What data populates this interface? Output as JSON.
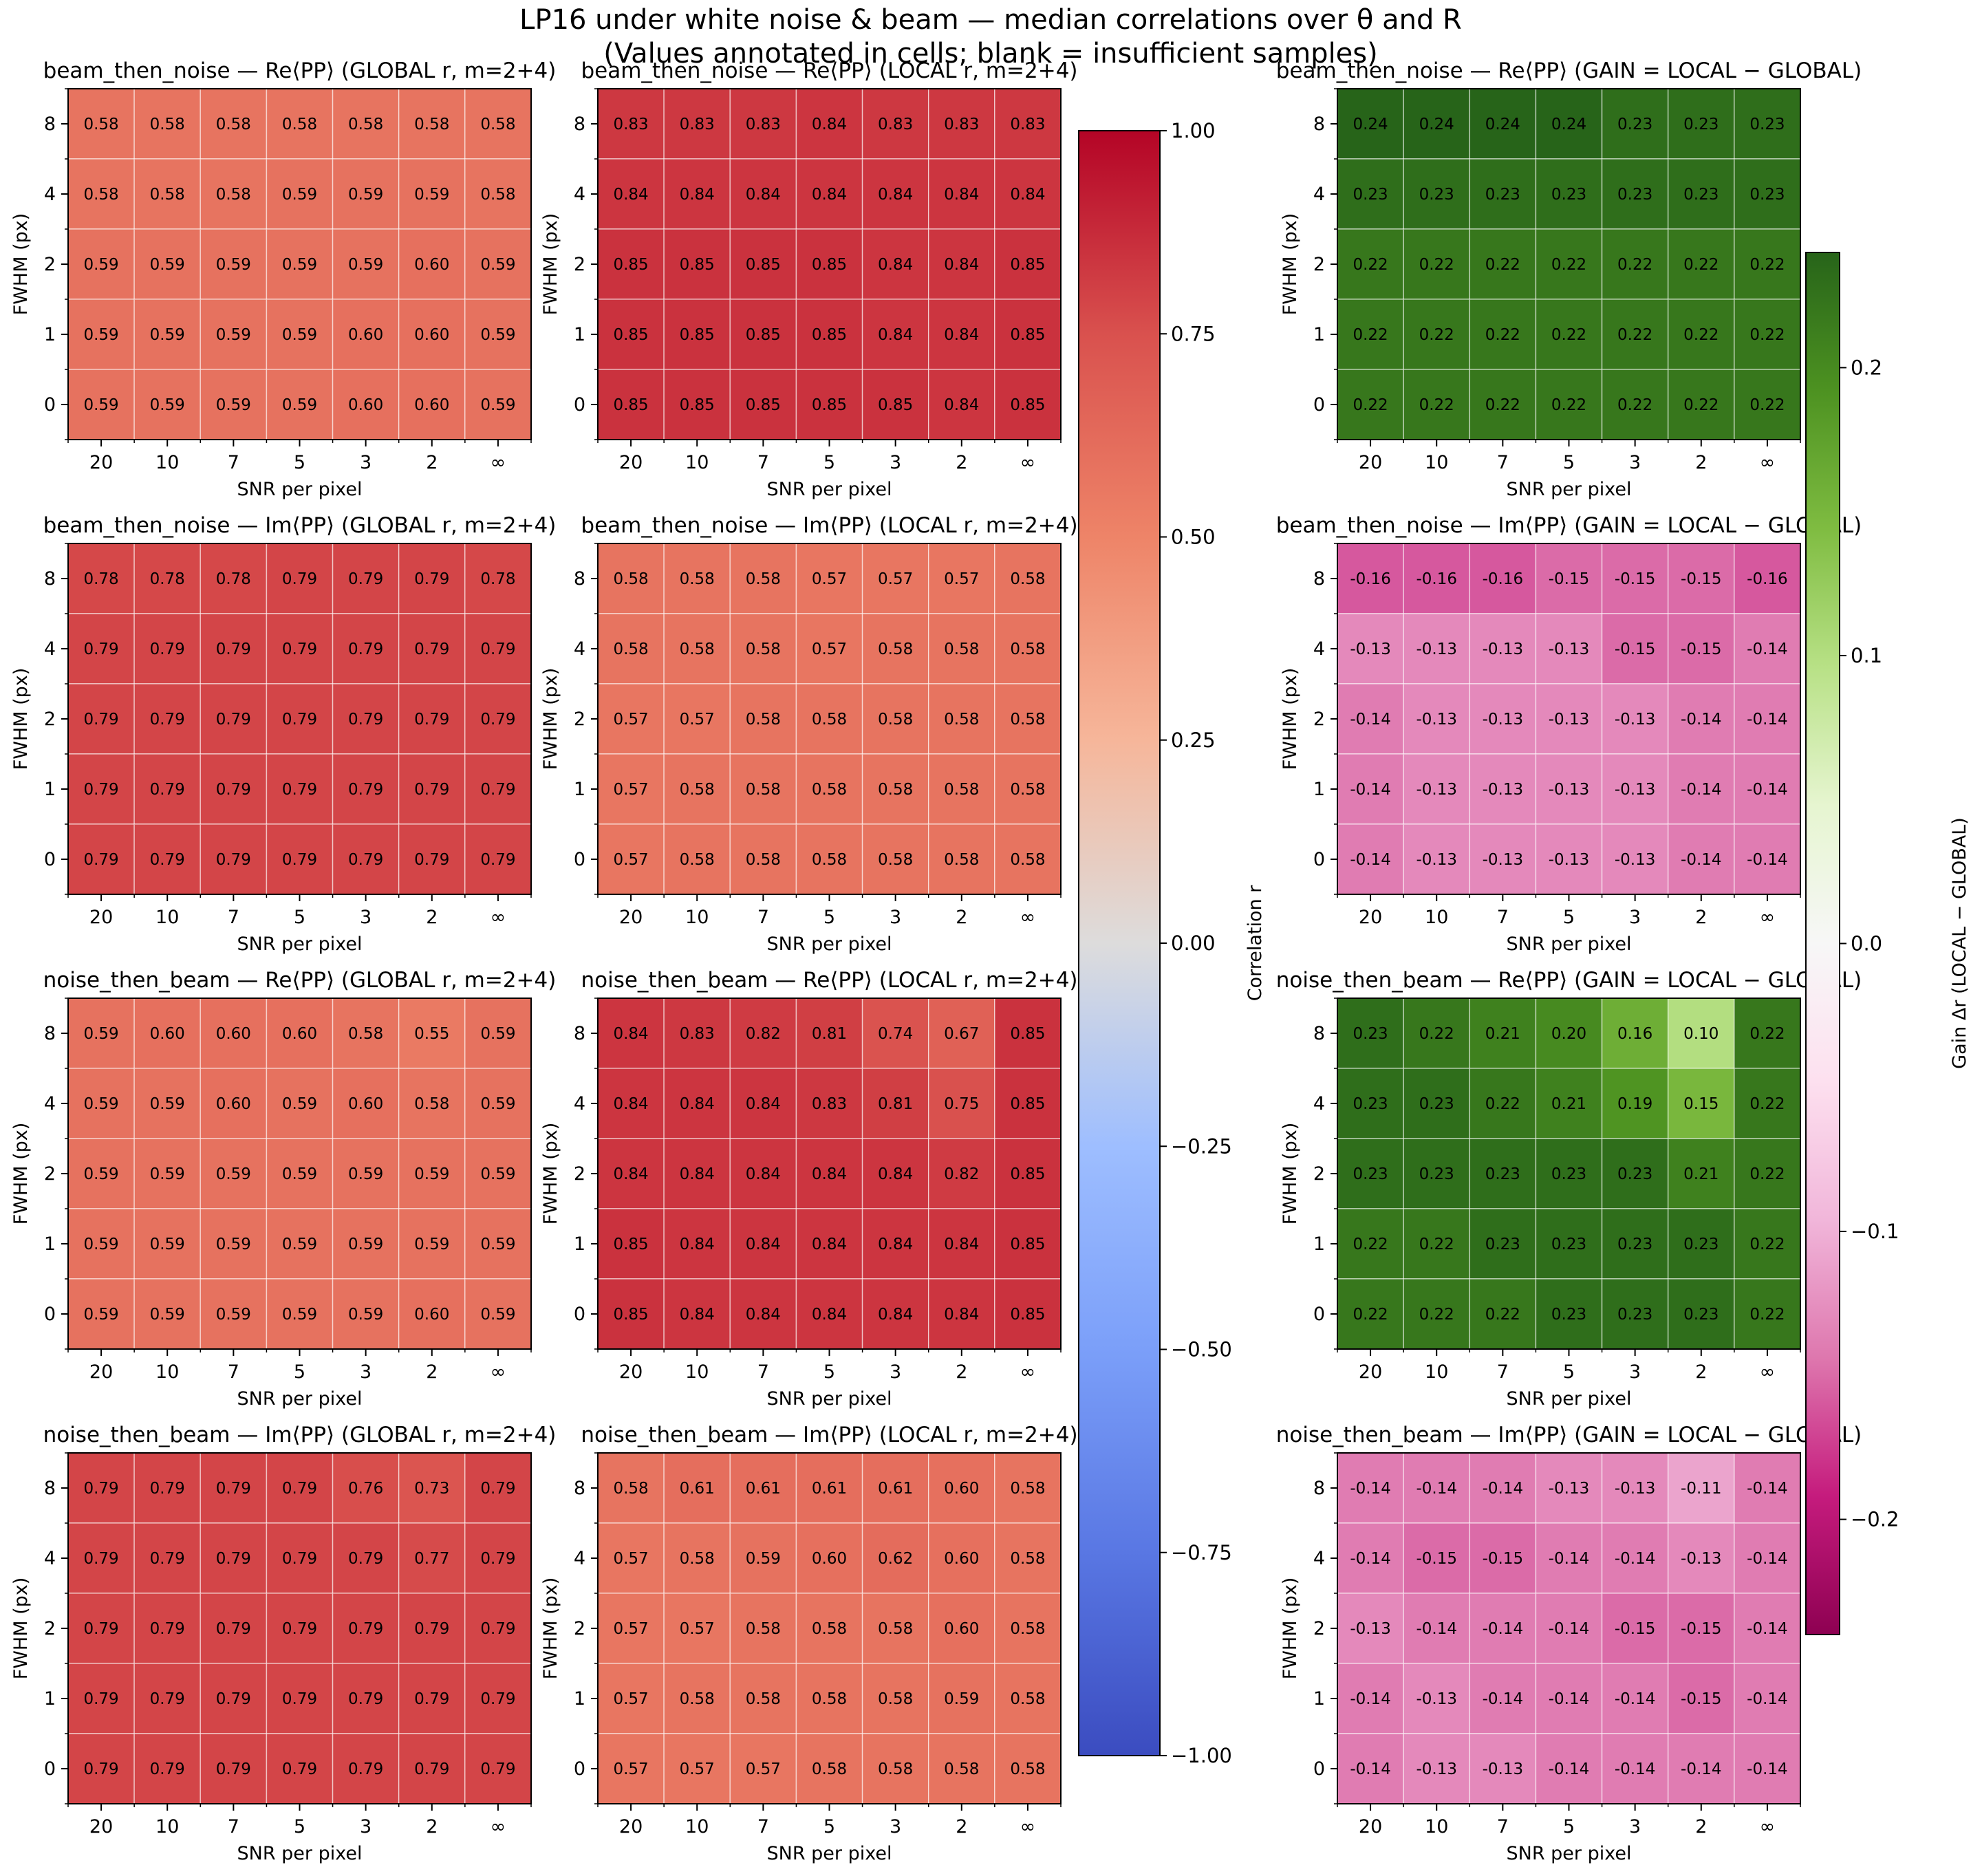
{
  "figure": {
    "title_line1": "LP16 under white noise & beam — median correlations over θ and R",
    "title_line2": "(Values annotated in cells; blank = insufficient samples)"
  },
  "colorbars": {
    "corr": {
      "label": "Correlation r",
      "ticks": [
        "1.00",
        "0.75",
        "0.50",
        "0.25",
        "0.00",
        "−0.25",
        "−0.50",
        "−0.75",
        "−1.00"
      ],
      "colormap": "coolwarm",
      "vmin": -1,
      "vmax": 1
    },
    "gain": {
      "label": "Gain Δr (LOCAL − GLOBAL)",
      "ticks": [
        "0.2",
        "0.1",
        "0.0",
        "−0.1",
        "−0.2"
      ],
      "colormap": "PiYG",
      "vmin": -0.24,
      "vmax": 0.24
    }
  },
  "chart_data": {
    "type": "heatmap",
    "x_categories": [
      "20",
      "10",
      "7",
      "5",
      "3",
      "2",
      "∞"
    ],
    "y_categories": [
      "8",
      "4",
      "2",
      "1",
      "0"
    ],
    "xlabel": "SNR per pixel",
    "ylabel": "FWHM (px)",
    "grid": true,
    "panels": [
      {
        "title": "beam_then_noise — Re⟨PP⟩  (GLOBAL r, m=2+4)",
        "cmap": "corr",
        "values": [
          [
            0.58,
            0.58,
            0.58,
            0.58,
            0.58,
            0.58,
            0.58
          ],
          [
            0.58,
            0.58,
            0.58,
            0.59,
            0.59,
            0.59,
            0.58
          ],
          [
            0.59,
            0.59,
            0.59,
            0.59,
            0.59,
            0.6,
            0.59
          ],
          [
            0.59,
            0.59,
            0.59,
            0.59,
            0.6,
            0.6,
            0.59
          ],
          [
            0.59,
            0.59,
            0.59,
            0.59,
            0.6,
            0.6,
            0.59
          ]
        ]
      },
      {
        "title": "beam_then_noise — Re⟨PP⟩  (LOCAL r, m=2+4)",
        "cmap": "corr",
        "values": [
          [
            0.83,
            0.83,
            0.83,
            0.84,
            0.83,
            0.83,
            0.83
          ],
          [
            0.84,
            0.84,
            0.84,
            0.84,
            0.84,
            0.84,
            0.84
          ],
          [
            0.85,
            0.85,
            0.85,
            0.85,
            0.84,
            0.84,
            0.85
          ],
          [
            0.85,
            0.85,
            0.85,
            0.85,
            0.84,
            0.84,
            0.85
          ],
          [
            0.85,
            0.85,
            0.85,
            0.85,
            0.85,
            0.84,
            0.85
          ]
        ]
      },
      {
        "title": "beam_then_noise — Re⟨PP⟩  (GAIN = LOCAL − GLOBAL)",
        "cmap": "gain",
        "values": [
          [
            0.24,
            0.24,
            0.24,
            0.24,
            0.23,
            0.23,
            0.23
          ],
          [
            0.23,
            0.23,
            0.23,
            0.23,
            0.23,
            0.23,
            0.23
          ],
          [
            0.22,
            0.22,
            0.22,
            0.22,
            0.22,
            0.22,
            0.22
          ],
          [
            0.22,
            0.22,
            0.22,
            0.22,
            0.22,
            0.22,
            0.22
          ],
          [
            0.22,
            0.22,
            0.22,
            0.22,
            0.22,
            0.22,
            0.22
          ]
        ]
      },
      {
        "title": "beam_then_noise — Im⟨PP⟩  (GLOBAL r, m=2+4)",
        "cmap": "corr",
        "values": [
          [
            0.78,
            0.78,
            0.78,
            0.79,
            0.79,
            0.79,
            0.78
          ],
          [
            0.79,
            0.79,
            0.79,
            0.79,
            0.79,
            0.79,
            0.79
          ],
          [
            0.79,
            0.79,
            0.79,
            0.79,
            0.79,
            0.79,
            0.79
          ],
          [
            0.79,
            0.79,
            0.79,
            0.79,
            0.79,
            0.79,
            0.79
          ],
          [
            0.79,
            0.79,
            0.79,
            0.79,
            0.79,
            0.79,
            0.79
          ]
        ]
      },
      {
        "title": "beam_then_noise — Im⟨PP⟩  (LOCAL r, m=2+4)",
        "cmap": "corr",
        "values": [
          [
            0.58,
            0.58,
            0.58,
            0.57,
            0.57,
            0.57,
            0.58
          ],
          [
            0.58,
            0.58,
            0.58,
            0.57,
            0.58,
            0.58,
            0.58
          ],
          [
            0.57,
            0.57,
            0.58,
            0.58,
            0.58,
            0.58,
            0.58
          ],
          [
            0.57,
            0.58,
            0.58,
            0.58,
            0.58,
            0.58,
            0.58
          ],
          [
            0.57,
            0.58,
            0.58,
            0.58,
            0.58,
            0.58,
            0.58
          ]
        ]
      },
      {
        "title": "beam_then_noise — Im⟨PP⟩  (GAIN = LOCAL − GLOBAL)",
        "cmap": "gain",
        "values": [
          [
            -0.16,
            -0.16,
            -0.16,
            -0.15,
            -0.15,
            -0.15,
            -0.16
          ],
          [
            -0.13,
            -0.13,
            -0.13,
            -0.13,
            -0.15,
            -0.15,
            -0.14
          ],
          [
            -0.14,
            -0.13,
            -0.13,
            -0.13,
            -0.13,
            -0.14,
            -0.14
          ],
          [
            -0.14,
            -0.13,
            -0.13,
            -0.13,
            -0.13,
            -0.14,
            -0.14
          ],
          [
            -0.14,
            -0.13,
            -0.13,
            -0.13,
            -0.13,
            -0.14,
            -0.14
          ]
        ]
      },
      {
        "title": "noise_then_beam — Re⟨PP⟩  (GLOBAL r, m=2+4)",
        "cmap": "corr",
        "values": [
          [
            0.59,
            0.6,
            0.6,
            0.6,
            0.58,
            0.55,
            0.59
          ],
          [
            0.59,
            0.59,
            0.6,
            0.59,
            0.6,
            0.58,
            0.59
          ],
          [
            0.59,
            0.59,
            0.59,
            0.59,
            0.59,
            0.59,
            0.59
          ],
          [
            0.59,
            0.59,
            0.59,
            0.59,
            0.59,
            0.59,
            0.59
          ],
          [
            0.59,
            0.59,
            0.59,
            0.59,
            0.59,
            0.6,
            0.59
          ]
        ]
      },
      {
        "title": "noise_then_beam — Re⟨PP⟩  (LOCAL r, m=2+4)",
        "cmap": "corr",
        "values": [
          [
            0.84,
            0.83,
            0.82,
            0.81,
            0.74,
            0.67,
            0.85
          ],
          [
            0.84,
            0.84,
            0.84,
            0.83,
            0.81,
            0.75,
            0.85
          ],
          [
            0.84,
            0.84,
            0.84,
            0.84,
            0.84,
            0.82,
            0.85
          ],
          [
            0.85,
            0.84,
            0.84,
            0.84,
            0.84,
            0.84,
            0.85
          ],
          [
            0.85,
            0.84,
            0.84,
            0.84,
            0.84,
            0.84,
            0.85
          ]
        ]
      },
      {
        "title": "noise_then_beam — Re⟨PP⟩  (GAIN = LOCAL − GLOBAL)",
        "cmap": "gain",
        "values": [
          [
            0.23,
            0.22,
            0.21,
            0.2,
            0.16,
            0.1,
            0.22
          ],
          [
            0.23,
            0.23,
            0.22,
            0.21,
            0.19,
            0.15,
            0.22
          ],
          [
            0.23,
            0.23,
            0.23,
            0.23,
            0.23,
            0.21,
            0.22
          ],
          [
            0.22,
            0.22,
            0.23,
            0.23,
            0.23,
            0.23,
            0.22
          ],
          [
            0.22,
            0.22,
            0.22,
            0.23,
            0.23,
            0.23,
            0.22
          ]
        ]
      },
      {
        "title": "noise_then_beam — Im⟨PP⟩  (GLOBAL r, m=2+4)",
        "cmap": "corr",
        "values": [
          [
            0.79,
            0.79,
            0.79,
            0.79,
            0.76,
            0.73,
            0.79
          ],
          [
            0.79,
            0.79,
            0.79,
            0.79,
            0.79,
            0.77,
            0.79
          ],
          [
            0.79,
            0.79,
            0.79,
            0.79,
            0.79,
            0.79,
            0.79
          ],
          [
            0.79,
            0.79,
            0.79,
            0.79,
            0.79,
            0.79,
            0.79
          ],
          [
            0.79,
            0.79,
            0.79,
            0.79,
            0.79,
            0.79,
            0.79
          ]
        ]
      },
      {
        "title": "noise_then_beam — Im⟨PP⟩  (LOCAL r, m=2+4)",
        "cmap": "corr",
        "values": [
          [
            0.58,
            0.61,
            0.61,
            0.61,
            0.61,
            0.6,
            0.58
          ],
          [
            0.57,
            0.58,
            0.59,
            0.6,
            0.62,
            0.6,
            0.58
          ],
          [
            0.57,
            0.57,
            0.58,
            0.58,
            0.58,
            0.6,
            0.58
          ],
          [
            0.57,
            0.58,
            0.58,
            0.58,
            0.58,
            0.59,
            0.58
          ],
          [
            0.57,
            0.57,
            0.57,
            0.58,
            0.58,
            0.58,
            0.58
          ]
        ]
      },
      {
        "title": "noise_then_beam — Im⟨PP⟩  (GAIN = LOCAL − GLOBAL)",
        "cmap": "gain",
        "values": [
          [
            -0.14,
            -0.14,
            -0.14,
            -0.13,
            -0.13,
            -0.11,
            -0.14
          ],
          [
            -0.14,
            -0.15,
            -0.15,
            -0.14,
            -0.14,
            -0.13,
            -0.14
          ],
          [
            -0.13,
            -0.14,
            -0.14,
            -0.14,
            -0.15,
            -0.15,
            -0.14
          ],
          [
            -0.14,
            -0.13,
            -0.14,
            -0.14,
            -0.14,
            -0.15,
            -0.14
          ],
          [
            -0.14,
            -0.13,
            -0.13,
            -0.14,
            -0.14,
            -0.14,
            -0.14
          ]
        ]
      }
    ]
  }
}
